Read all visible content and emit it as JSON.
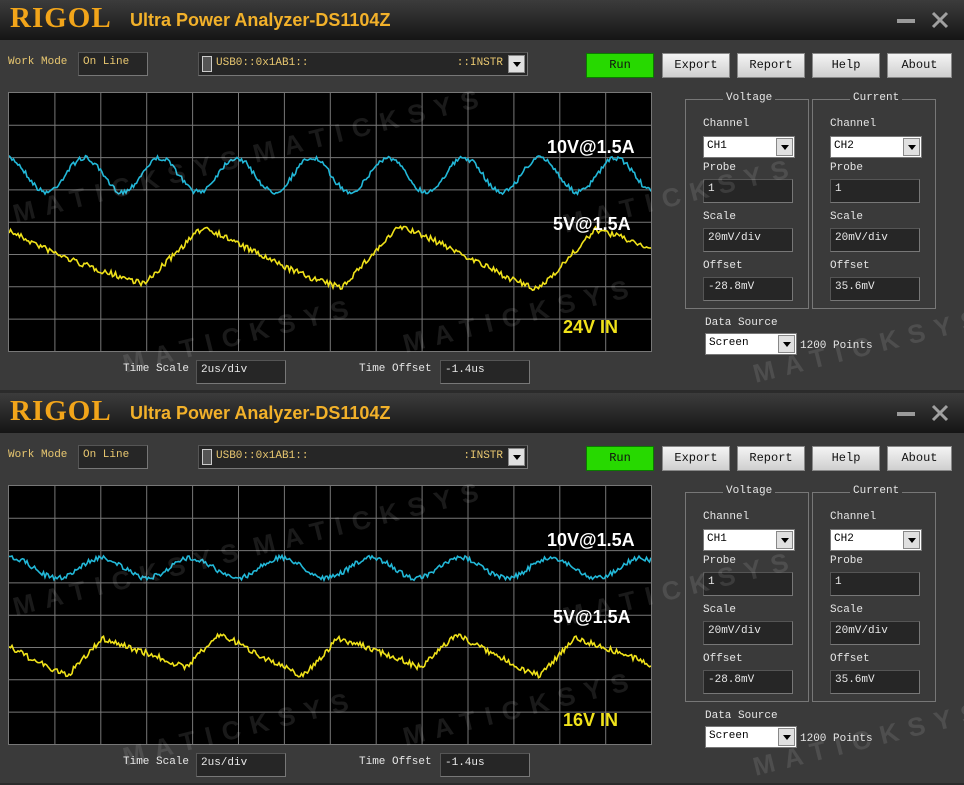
{
  "watermark": "MATICKSYS",
  "windows": [
    {
      "brand": "RIGOL",
      "app_title": "Ultra Power Analyzer-DS1104Z",
      "work_mode_label": "Work Mode",
      "work_mode": "On Line",
      "resource": "USB0::0x1AB1::",
      "resource_suffix": "::INSTR",
      "buttons": [
        "Run",
        "Export",
        "Report",
        "Help",
        "About"
      ],
      "voltage": {
        "title": "Voltage",
        "channel_label": "Channel",
        "channel": "CH1",
        "probe_label": "Probe",
        "probe": "1",
        "scale_label": "Scale",
        "scale": "20mV/div",
        "offset_label": "Offset",
        "offset": "-28.8mV"
      },
      "current": {
        "title": "Current",
        "channel_label": "Channel",
        "channel": "CH2",
        "probe_label": "Probe",
        "probe": "1",
        "scale_label": "Scale",
        "scale": "20mV/div",
        "offset_label": "Offset",
        "offset": "35.6mV"
      },
      "data_source_label": "Data Source",
      "data_source": "Screen",
      "points": "1200 Points",
      "time_scale_label": "Time Scale",
      "time_scale": "2us/div",
      "time_offset_label": "Time Offset",
      "time_offset": "-1.4us",
      "annotations": [
        "10V@1.5A",
        "5V@1.5A",
        "24V IN"
      ]
    },
    {
      "brand": "RIGOL",
      "app_title": "Ultra Power Analyzer-DS1104Z",
      "work_mode_label": "Work Mode",
      "work_mode": "On Line",
      "resource": "USB0::0x1AB1::",
      "resource_suffix": ":INSTR",
      "buttons": [
        "Run",
        "Export",
        "Report",
        "Help",
        "About"
      ],
      "voltage": {
        "title": "Voltage",
        "channel_label": "Channel",
        "channel": "CH1",
        "probe_label": "Probe",
        "probe": "1",
        "scale_label": "Scale",
        "scale": "20mV/div",
        "offset_label": "Offset",
        "offset": "-28.8mV"
      },
      "current": {
        "title": "Current",
        "channel_label": "Channel",
        "channel": "CH2",
        "probe_label": "Probe",
        "probe": "1",
        "scale_label": "Scale",
        "scale": "20mV/div",
        "offset_label": "Offset",
        "offset": "35.6mV"
      },
      "data_source_label": "Data Source",
      "data_source": "Screen",
      "points": "1200 Points",
      "time_scale_label": "Time Scale",
      "time_scale": "2us/div",
      "time_offset_label": "Time Offset",
      "time_offset": "-1.4us",
      "annotations": [
        "10V@1.5A",
        "5V@1.5A",
        "16V IN"
      ]
    }
  ]
}
